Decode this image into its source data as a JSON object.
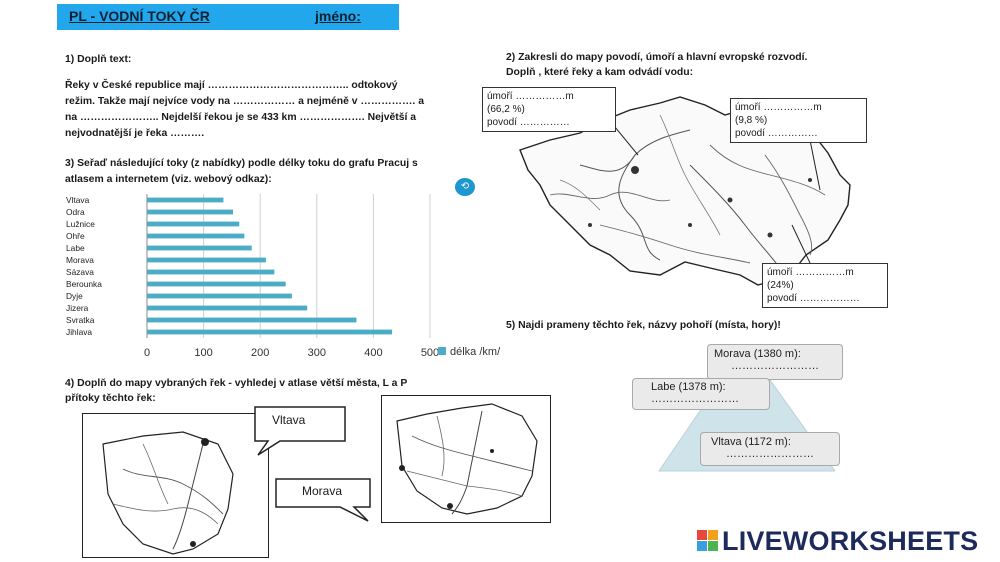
{
  "header": {
    "title": "PL - VODNÍ TOKY  ČR",
    "name_label": "jméno:"
  },
  "q1": {
    "heading": "1) Doplň text:",
    "lines": [
      "Řeky v České republice mají ………………………………….. odtokový",
      "režim. Takže mají nejvíce vody na ……………… a  nejméně  v ……………. a",
      "na ………………….. Nejdelší řekou  je se 433 km ………………. Největší a",
      "nejvodnatější je řeka ………."
    ]
  },
  "q3": {
    "heading_1": "3) Seřaď následující  toky  (z nabídky)  podle  délky toku do grafu Pracuj  s",
    "heading_2": "atlasem a internetem (viz.  webový odkaz):"
  },
  "chart_data": {
    "type": "bar",
    "orientation": "horizontal",
    "categories": [
      "Vltava",
      "Odra",
      "Lužnice",
      "Ohře",
      "Labe",
      "Morava",
      "Sázava",
      "Berounka",
      "Dyje",
      "Jizera",
      "Svratka",
      "Jihlava"
    ],
    "values": [
      135,
      152,
      163,
      172,
      185,
      210,
      225,
      245,
      256,
      283,
      370,
      433
    ],
    "xlim": [
      0,
      500
    ],
    "xticks": [
      "0",
      "100",
      "200",
      "300",
      "400",
      "500"
    ],
    "legend": "délka /km/",
    "legend_position": "right",
    "color": "#4aacc5",
    "grid": true
  },
  "q2": {
    "heading_1": "2) Zakresli do mapy povodí,  úmoří  a hlavní evropské rozvodí.",
    "heading_2": "Doplň , které řeky a kam odvádí vodu:",
    "box1": [
      "úmoří ……………m",
      "(66,2 %)",
      "povodí ……………"
    ],
    "box2": [
      "úmoří ……………m",
      "(9,8 %)",
      "povodí ……………"
    ],
    "box3": [
      "úmoří ……………m",
      "(24%)",
      "povodí ………………"
    ]
  },
  "q4": {
    "heading_1": "4) Doplň do mapy vybraných řek - vyhledej v atlase větší města, L a P",
    "heading_2": "přítoky těchto řek:",
    "callout_vltava": "Vltava",
    "callout_morava": "Morava"
  },
  "q5": {
    "heading": "5) Najdi prameny těchto řek, názvy pohoří (místa, hory)!",
    "morava": "Morava (1380 m):",
    "labe": "Labe (1378 m):",
    "vltava": "Vltava (1172 m):",
    "dots": "……………………"
  },
  "brand": {
    "text": "LIVEWORKSHEETS",
    "accent": "#1d2b5c"
  },
  "colors": {
    "title_bar": "#22a7ec",
    "bar": "#4aacc5",
    "triangle": "#cfe3ea"
  }
}
